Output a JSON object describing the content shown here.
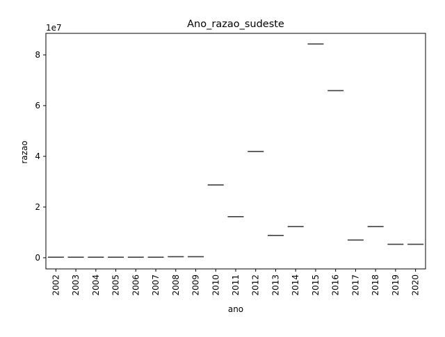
{
  "chart_data": {
    "type": "box",
    "title": "Ano_razao_sudeste",
    "xlabel": "ano",
    "ylabel": "razao",
    "y_offset_label": "1e7",
    "categories": [
      "2002",
      "2003",
      "2004",
      "2005",
      "2006",
      "2007",
      "2008",
      "2009",
      "2010",
      "2011",
      "2012",
      "2013",
      "2014",
      "2015",
      "2016",
      "2017",
      "2018",
      "2019",
      "2020"
    ],
    "values": [
      0.02,
      0.02,
      0.02,
      0.02,
      0.02,
      0.02,
      0.04,
      0.04,
      2.87,
      1.62,
      4.19,
      0.88,
      1.23,
      8.43,
      6.59,
      0.7,
      1.23,
      0.53,
      0.53
    ],
    "ylim": [
      -0.44,
      8.85
    ],
    "yticks": [
      0,
      2,
      4,
      6,
      8
    ],
    "ytick_labels": [
      "0",
      "2",
      "4",
      "6",
      "8"
    ],
    "grid": false,
    "colors": {
      "box_line": "#3f3f3f",
      "axis": "#000000"
    }
  }
}
